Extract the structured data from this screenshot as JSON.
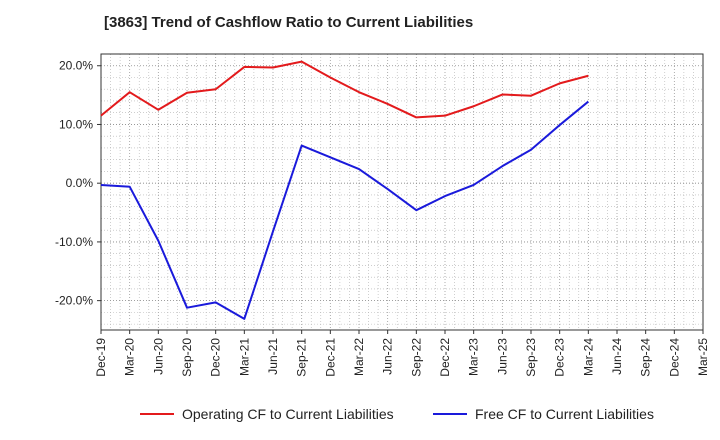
{
  "chart_data": {
    "type": "line",
    "title": "[3863]  Trend of Cashflow Ratio to Current Liabilities",
    "xlabel": "",
    "ylabel": "",
    "categories": [
      "Dec-19",
      "Mar-20",
      "Jun-20",
      "Sep-20",
      "Dec-20",
      "Mar-21",
      "Jun-21",
      "Sep-21",
      "Dec-21",
      "Mar-22",
      "Jun-22",
      "Sep-22",
      "Dec-22",
      "Mar-23",
      "Jun-23",
      "Sep-23",
      "Dec-23",
      "Mar-24",
      "Jun-24",
      "Sep-24",
      "Dec-24",
      "Mar-25"
    ],
    "ylim": [
      -25,
      22
    ],
    "yticks": [
      20,
      10,
      0,
      -10,
      -20
    ],
    "ytick_labels": [
      "20.0%",
      "10.0%",
      "0.0%",
      "-10.0%",
      "-20.0%"
    ],
    "grid": true,
    "legend_position": "bottom",
    "series": [
      {
        "name": "Operating CF to Current Liabilities",
        "color": "#e31a1c",
        "values": [
          11.5,
          15.5,
          12.5,
          15.4,
          16.0,
          19.8,
          19.7,
          20.7,
          18.0,
          15.5,
          13.5,
          11.2,
          11.5,
          13.1,
          15.1,
          14.9,
          17.0,
          18.3,
          null,
          null,
          null,
          null
        ]
      },
      {
        "name": "Free CF to Current Liabilities",
        "color": "#1a1adb",
        "values": [
          -0.3,
          -0.6,
          -9.8,
          -21.2,
          -20.3,
          -23.1,
          -8.2,
          6.4,
          4.4,
          2.4,
          -1.0,
          -4.6,
          -2.2,
          -0.3,
          2.9,
          5.7,
          9.9,
          13.9,
          null,
          null,
          null,
          null
        ]
      }
    ]
  }
}
